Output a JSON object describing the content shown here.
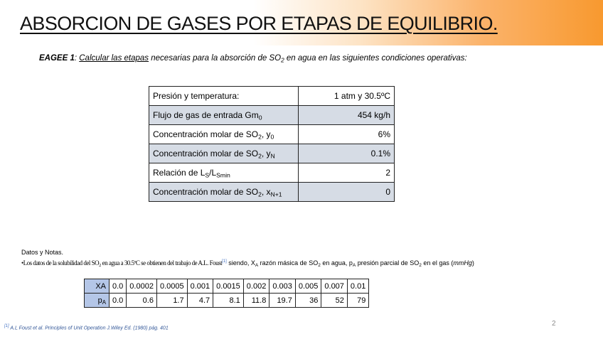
{
  "title": "ABSORCION DE GASES POR ETAPAS DE EQUILIBRIO.",
  "task": {
    "label": "EAGEE 1",
    "colon": ": ",
    "link_text": "Calcular las etapas",
    "text_a": " necesarias para la absorción de SO",
    "sub": "2",
    "text_b": " en agua en las siguientes condiciones operativas:"
  },
  "conditions": [
    {
      "pre": "Presión y temperatura:",
      "sub1": "",
      "mid": "",
      "sub2": "",
      "value": "1 atm y 30.5ºC"
    },
    {
      "pre": "Flujo de gas de entrada Gm",
      "sub1": "0",
      "mid": "",
      "sub2": "",
      "value": "454 kg/h"
    },
    {
      "pre": "Concentración molar de SO",
      "sub1": "2",
      "mid": ", y",
      "sub2": "0",
      "value": "6%"
    },
    {
      "pre": "Concentración molar de SO",
      "sub1": "2",
      "mid": ", y",
      "sub2": "N",
      "value": "0.1%"
    },
    {
      "pre": "Relación de L",
      "sub1": "S",
      "mid": "/L",
      "sub2": "Smin",
      "value": "2"
    },
    {
      "pre": "Concentración molar de SO",
      "sub1": "2",
      "mid": ", x",
      "sub2": "N+1",
      "value": "0"
    }
  ],
  "notes": {
    "heading": "Datos y Notas.",
    "line_a": "•Los datos de la solubilidad del SO",
    "sub_a": "2",
    "line_b": " en agua a 30.5ºC se obtienen del trabajo de A.L. Foust",
    "ref": "[1]",
    "line_c": " siendo, X",
    "sub_c": "A",
    "line_d": " razón másica de SO",
    "sub_d": "2",
    "line_e": " en agua, p",
    "sub_e": "A",
    "line_f": " presión parcial de SO",
    "sub_f": "2",
    "line_g": " en el gas (",
    "unit": "mmHg",
    "line_h": ")"
  },
  "data_table": {
    "row1": {
      "header": "XA",
      "values": [
        "0.0",
        "0.0002",
        "0.0005",
        "0.001",
        "0.0015",
        "0.002",
        "0.003",
        "0.005",
        "0.007",
        "0.01"
      ]
    },
    "row2": {
      "header_main": "p",
      "header_sub": "A",
      "values": [
        "0.0",
        "0.6",
        "1.7",
        "4.7",
        "8.1",
        "11.8",
        "19.7",
        "36",
        "52",
        "79"
      ]
    }
  },
  "footnote": {
    "ref": "[1]",
    "text": " A.L Foust et al. Principles of Unit Operation J.Wiley Ed. (1980) pág. 401"
  },
  "page_number": "2",
  "colors": {
    "gradient_end": "#f8992f",
    "table_shade": "#d6dce5",
    "header_fill": "#b4c6e7",
    "footnote": "#2f5496"
  }
}
